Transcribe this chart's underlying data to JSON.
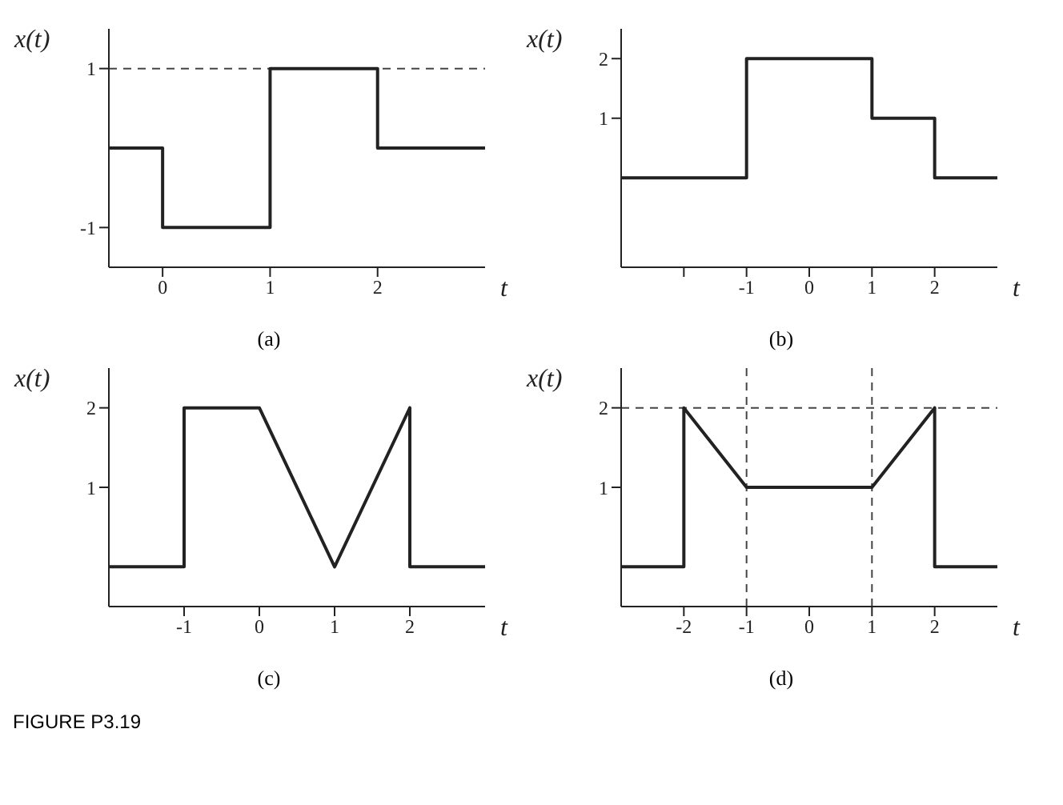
{
  "chart_data": [
    {
      "type": "line",
      "ylabel": "x(t)",
      "xlabel": "t",
      "annotations": [
        "(a)"
      ],
      "x": [
        -0.5,
        0,
        0,
        1,
        1,
        2,
        2,
        3
      ],
      "series": [
        {
          "color": "#222222",
          "values": [
            0,
            0,
            -1,
            -1,
            1,
            1,
            0,
            0
          ]
        }
      ],
      "xlim": [
        -0.5,
        3
      ],
      "ylim": [
        -1.5,
        1.5
      ],
      "xticks": [
        0,
        1,
        2
      ],
      "yticks": [
        -1,
        1
      ],
      "ref_lines": [
        {
          "axis": "y",
          "value": 1,
          "line_style": "dashed"
        }
      ],
      "marker": "none",
      "line_style": "solid",
      "grid": false,
      "legend": false
    },
    {
      "type": "line",
      "ylabel": "x(t)",
      "xlabel": "t",
      "annotations": [
        "(b)"
      ],
      "x": [
        -3,
        -1,
        -1,
        1,
        1,
        2,
        2,
        3
      ],
      "series": [
        {
          "color": "#222222",
          "values": [
            0,
            0,
            2,
            2,
            1,
            1,
            0,
            0
          ]
        }
      ],
      "xlim": [
        -3,
        3
      ],
      "ylim": [
        -1.5,
        2.5
      ],
      "xticks": [
        {
          "value": -2,
          "label": null
        },
        -1,
        0,
        1,
        2
      ],
      "yticks": [
        1,
        2
      ],
      "marker": "none",
      "line_style": "solid",
      "grid": false,
      "legend": false
    },
    {
      "type": "line",
      "ylabel": "x(t)",
      "xlabel": "t",
      "annotations": [
        "(c)",
        "FIGURE P3.19"
      ],
      "x": [
        -2,
        -1,
        -1,
        0,
        1,
        2,
        2,
        3
      ],
      "series": [
        {
          "color": "#222222",
          "values": [
            0,
            0,
            2,
            2,
            0,
            2,
            0,
            0
          ]
        }
      ],
      "xlim": [
        -2,
        3
      ],
      "ylim": [
        -0.5,
        2.5
      ],
      "xticks": [
        -1,
        0,
        1,
        2
      ],
      "yticks": [
        1,
        2
      ],
      "marker": "none",
      "line_style": "solid",
      "grid": false,
      "legend": false
    },
    {
      "type": "line",
      "ylabel": "x(t)",
      "xlabel": "t",
      "annotations": [
        "(d)"
      ],
      "x": [
        -3,
        -2,
        -2,
        -1,
        1,
        2,
        2,
        3
      ],
      "series": [
        {
          "color": "#222222",
          "values": [
            0,
            0,
            2,
            1,
            1,
            2,
            0,
            0
          ]
        }
      ],
      "xlim": [
        -3,
        3
      ],
      "ylim": [
        -0.5,
        2.5
      ],
      "xticks": [
        -2,
        -1,
        0,
        1,
        2
      ],
      "yticks": [
        1,
        2
      ],
      "ref_lines": [
        {
          "axis": "y",
          "value": 2,
          "line_style": "dashed"
        },
        {
          "axis": "x",
          "value": -1,
          "line_style": "dashed"
        },
        {
          "axis": "x",
          "value": 1,
          "line_style": "dashed"
        }
      ],
      "marker": "none",
      "line_style": "solid",
      "grid": false,
      "legend": false
    }
  ]
}
